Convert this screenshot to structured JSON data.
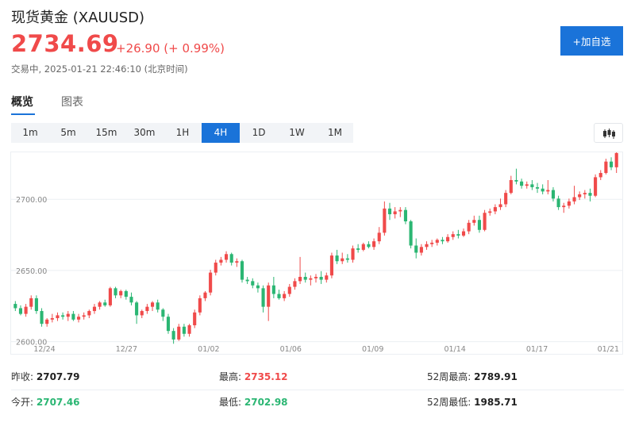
{
  "header": {
    "title": "现货黄金 (XAUUSD)",
    "price": "2734.69",
    "change": "+26.90 (+ 0.99%)",
    "status": "交易中, 2025-01-21 22:46:10 (北京时间)",
    "add_button": "+加自选"
  },
  "tabs": [
    {
      "label": "概览",
      "active": true
    },
    {
      "label": "图表",
      "active": false
    }
  ],
  "periods": [
    {
      "label": "1m",
      "active": false
    },
    {
      "label": "5m",
      "active": false
    },
    {
      "label": "15m",
      "active": false
    },
    {
      "label": "30m",
      "active": false
    },
    {
      "label": "1H",
      "active": false
    },
    {
      "label": "4H",
      "active": true
    },
    {
      "label": "1D",
      "active": false
    },
    {
      "label": "1W",
      "active": false
    },
    {
      "label": "1M",
      "active": false
    }
  ],
  "stats": {
    "prev_close_label": "昨收:",
    "prev_close": "2707.79",
    "high_label": "最高:",
    "high": "2735.12",
    "high52_label": "52周最高:",
    "high52": "2789.91",
    "open_label": "今开:",
    "open": "2707.46",
    "low_label": "最低:",
    "low": "2702.98",
    "low52_label": "52周最低:",
    "low52": "1985.71"
  },
  "colors": {
    "up": "#f04a4a",
    "down": "#2bb673",
    "accent": "#1a73d9"
  },
  "icons": {
    "chart_type": "candlestick-chart-icon"
  },
  "chart_data": {
    "type": "candlestick",
    "title": "",
    "xlabel": "",
    "ylabel": "",
    "y_ticks": [
      "2600.00",
      "2650.00",
      "2700.00"
    ],
    "ylim": [
      2597,
      2733
    ],
    "x_tick_labels": [
      "12/24",
      "12/27",
      "01/02",
      "01/06",
      "01/09",
      "01/14",
      "01/17",
      "01/21"
    ],
    "grid": true,
    "candles": [
      [
        2626.5,
        2628.5,
        2621.5,
        2623.5
      ],
      [
        2623.5,
        2625.5,
        2618.5,
        2619.5
      ],
      [
        2619.5,
        2626.5,
        2617.5,
        2624.5
      ],
      [
        2624.5,
        2632.5,
        2622.5,
        2630.5
      ],
      [
        2630.5,
        2632.5,
        2619.5,
        2621.5
      ],
      [
        2621.5,
        2623.5,
        2610.5,
        2612.5
      ],
      [
        2612.5,
        2616.5,
        2610.5,
        2615.5
      ],
      [
        2615.5,
        2619.5,
        2613.5,
        2616.5
      ],
      [
        2616.5,
        2620.5,
        2614.5,
        2618.5
      ],
      [
        2618.5,
        2620.5,
        2615.5,
        2617.5
      ],
      [
        2617.5,
        2621.5,
        2614.5,
        2619.5
      ],
      [
        2619.5,
        2621.5,
        2614.5,
        2615.5
      ],
      [
        2615.5,
        2619.5,
        2613.5,
        2617.5
      ],
      [
        2617.5,
        2620.5,
        2615.5,
        2618.5
      ],
      [
        2618.5,
        2622.5,
        2616.5,
        2621.5
      ],
      [
        2621.5,
        2626.5,
        2619.5,
        2624.5
      ],
      [
        2624.5,
        2628.5,
        2622.5,
        2627.5
      ],
      [
        2627.5,
        2629.5,
        2624.5,
        2625.5
      ],
      [
        2625.5,
        2638.5,
        2624.5,
        2637.5
      ],
      [
        2637.5,
        2638.5,
        2630.5,
        2632.5
      ],
      [
        2632.5,
        2636.5,
        2630.5,
        2635.5
      ],
      [
        2635.5,
        2636.5,
        2629.5,
        2631.5
      ],
      [
        2631.5,
        2634.5,
        2625.5,
        2627.5
      ],
      [
        2627.5,
        2628.5,
        2612.5,
        2618.5
      ],
      [
        2618.5,
        2622.5,
        2616.5,
        2621.5
      ],
      [
        2621.5,
        2626.5,
        2619.5,
        2624.5
      ],
      [
        2624.5,
        2628.5,
        2621.5,
        2627.5
      ],
      [
        2627.5,
        2629.5,
        2620.5,
        2622.5
      ],
      [
        2622.5,
        2623.5,
        2614.5,
        2617.5
      ],
      [
        2617.5,
        2619.5,
        2605.5,
        2607.5
      ],
      [
        2607.5,
        2609.5,
        2598.5,
        2601.5
      ],
      [
        2601.5,
        2612.5,
        2600.5,
        2610.5
      ],
      [
        2610.5,
        2612.5,
        2603.5,
        2605.5
      ],
      [
        2605.5,
        2612.5,
        2603.5,
        2611.5
      ],
      [
        2611.5,
        2622.5,
        2609.5,
        2620.5
      ],
      [
        2620.5,
        2632.5,
        2618.5,
        2630.5
      ],
      [
        2630.5,
        2635.5,
        2628.5,
        2634.5
      ],
      [
        2634.5,
        2650.5,
        2632.5,
        2648.5
      ],
      [
        2648.5,
        2657.5,
        2646.5,
        2655.5
      ],
      [
        2655.5,
        2659.5,
        2653.5,
        2657.5
      ],
      [
        2657.5,
        2663.5,
        2655.5,
        2661.5
      ],
      [
        2661.5,
        2662.5,
        2653.5,
        2655.5
      ],
      [
        2655.5,
        2658.5,
        2652.5,
        2656.5
      ],
      [
        2656.5,
        2657.5,
        2641.5,
        2643.5
      ],
      [
        2643.5,
        2645.5,
        2640.5,
        2642.5
      ],
      [
        2642.5,
        2644.5,
        2637.5,
        2639.5
      ],
      [
        2639.5,
        2641.5,
        2634.5,
        2637.5
      ],
      [
        2637.5,
        2639.5,
        2620.5,
        2624.5
      ],
      [
        2624.5,
        2641.5,
        2614.5,
        2639.5
      ],
      [
        2639.5,
        2645.5,
        2630.5,
        2633.5
      ],
      [
        2633.5,
        2636.5,
        2629.5,
        2630.5
      ],
      [
        2630.5,
        2635.5,
        2628.5,
        2633.5
      ],
      [
        2633.5,
        2640.5,
        2631.5,
        2638.5
      ],
      [
        2638.5,
        2644.5,
        2636.5,
        2642.5
      ],
      [
        2642.5,
        2659.5,
        2640.5,
        2645.5
      ],
      [
        2645.5,
        2648.5,
        2641.5,
        2643.5
      ],
      [
        2643.5,
        2646.5,
        2639.5,
        2644.5
      ],
      [
        2644.5,
        2647.5,
        2641.5,
        2645.5
      ],
      [
        2645.5,
        2649.5,
        2640.5,
        2643.5
      ],
      [
        2643.5,
        2648.5,
        2641.5,
        2646.5
      ],
      [
        2646.5,
        2662.5,
        2644.5,
        2660.5
      ],
      [
        2660.5,
        2664.5,
        2654.5,
        2656.5
      ],
      [
        2656.5,
        2662.5,
        2654.5,
        2658.5
      ],
      [
        2658.5,
        2661.5,
        2655.5,
        2657.5
      ],
      [
        2657.5,
        2667.5,
        2655.5,
        2665.5
      ],
      [
        2665.5,
        2668.5,
        2662.5,
        2664.5
      ],
      [
        2664.5,
        2669.5,
        2663.5,
        2668.5
      ],
      [
        2668.5,
        2670.5,
        2665.5,
        2666.5
      ],
      [
        2666.5,
        2672.5,
        2664.5,
        2670.5
      ],
      [
        2670.5,
        2680.5,
        2668.5,
        2676.5
      ],
      [
        2676.5,
        2698.5,
        2674.5,
        2693.5
      ],
      [
        2693.5,
        2697.5,
        2685.5,
        2689.5
      ],
      [
        2689.5,
        2694.5,
        2686.5,
        2691.5
      ],
      [
        2691.5,
        2694.5,
        2687.5,
        2692.5
      ],
      [
        2692.5,
        2694.5,
        2682.5,
        2684.5
      ],
      [
        2684.5,
        2685.5,
        2665.5,
        2667.5
      ],
      [
        2667.5,
        2672.5,
        2658.5,
        2662.5
      ],
      [
        2662.5,
        2668.5,
        2660.5,
        2666.5
      ],
      [
        2666.5,
        2670.5,
        2664.5,
        2668.5
      ],
      [
        2668.5,
        2671.5,
        2666.5,
        2669.5
      ],
      [
        2669.5,
        2672.5,
        2667.5,
        2671.5
      ],
      [
        2671.5,
        2673.5,
        2668.5,
        2670.5
      ],
      [
        2670.5,
        2675.5,
        2669.5,
        2673.5
      ],
      [
        2673.5,
        2677.5,
        2671.5,
        2675.5
      ],
      [
        2675.5,
        2678.5,
        2672.5,
        2674.5
      ],
      [
        2674.5,
        2679.5,
        2673.5,
        2677.5
      ],
      [
        2677.5,
        2685.5,
        2675.5,
        2683.5
      ],
      [
        2683.5,
        2688.5,
        2681.5,
        2685.5
      ],
      [
        2685.5,
        2688.5,
        2676.5,
        2678.5
      ],
      [
        2678.5,
        2692.5,
        2677.5,
        2690.5
      ],
      [
        2690.5,
        2693.5,
        2688.5,
        2691.5
      ],
      [
        2691.5,
        2696.5,
        2689.5,
        2694.5
      ],
      [
        2694.5,
        2700.5,
        2692.5,
        2696.5
      ],
      [
        2696.5,
        2706.5,
        2694.5,
        2704.5
      ],
      [
        2704.5,
        2716.5,
        2703.5,
        2713.5
      ],
      [
        2713.5,
        2721.5,
        2710.5,
        2712.5
      ],
      [
        2712.5,
        2714.5,
        2707.5,
        2709.5
      ],
      [
        2709.5,
        2712.5,
        2707.5,
        2710.5
      ],
      [
        2710.5,
        2713.5,
        2706.5,
        2708.5
      ],
      [
        2708.5,
        2711.5,
        2704.5,
        2707.5
      ],
      [
        2707.5,
        2710.5,
        2703.5,
        2705.5
      ],
      [
        2705.5,
        2713.5,
        2703.5,
        2706.5
      ],
      [
        2706.5,
        2708.5,
        2698.5,
        2700.5
      ],
      [
        2700.5,
        2702.5,
        2692.5,
        2694.5
      ],
      [
        2694.5,
        2697.5,
        2690.5,
        2695.5
      ],
      [
        2695.5,
        2700.5,
        2693.5,
        2698.5
      ],
      [
        2698.5,
        2709.5,
        2696.5,
        2701.5
      ],
      [
        2701.5,
        2705.5,
        2699.5,
        2703.5
      ],
      [
        2703.5,
        2706.5,
        2700.5,
        2704.5
      ],
      [
        2704.5,
        2707.5,
        2698.5,
        2702.5
      ],
      [
        2702.5,
        2717.5,
        2701.5,
        2715.5
      ],
      [
        2715.5,
        2720.5,
        2713.5,
        2718.5
      ],
      [
        2718.5,
        2728.5,
        2717.5,
        2726.5
      ],
      [
        2726.5,
        2729.5,
        2720.5,
        2722.5
      ],
      [
        2722.5,
        2735.5,
        2718.5,
        2732.5
      ]
    ]
  }
}
